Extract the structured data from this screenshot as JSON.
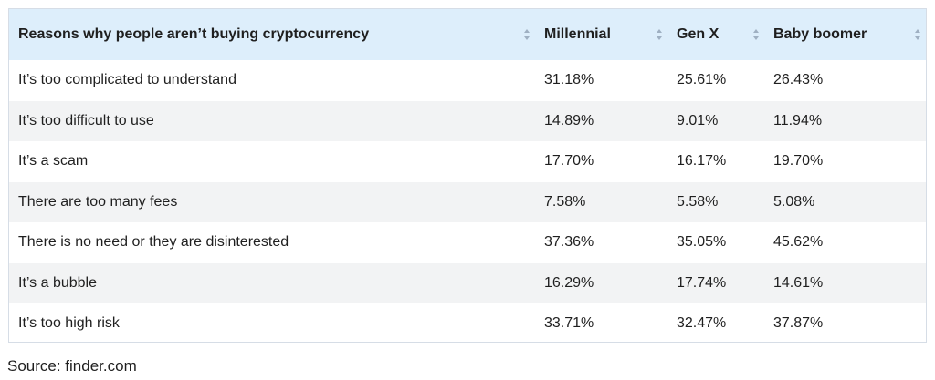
{
  "table": {
    "headers": [
      "Reasons why people aren’t buying cryptocurrency",
      "Millennial",
      "Gen X",
      "Baby boomer"
    ],
    "rows": [
      [
        "It’s too complicated to understand",
        "31.18%",
        "25.61%",
        "26.43%"
      ],
      [
        "It’s too difficult to use",
        "14.89%",
        "9.01%",
        "11.94%"
      ],
      [
        "It’s a scam",
        "17.70%",
        "16.17%",
        "19.70%"
      ],
      [
        "There are too many fees",
        "7.58%",
        "5.58%",
        "5.08%"
      ],
      [
        "There is no need or they are disinterested",
        "37.36%",
        "35.05%",
        "45.62%"
      ],
      [
        "It’s a bubble",
        "16.29%",
        "17.74%",
        "14.61%"
      ],
      [
        "It’s too high risk",
        "33.71%",
        "32.47%",
        "37.87%"
      ]
    ]
  },
  "source": "Source: finder.com",
  "icons": {
    "sort": "sort-icon"
  },
  "colors": {
    "header_bg": "#ddeefb",
    "stripe_bg": "#f2f3f4",
    "border": "#d6dde6",
    "sort_icon": "#9fb0c2"
  }
}
